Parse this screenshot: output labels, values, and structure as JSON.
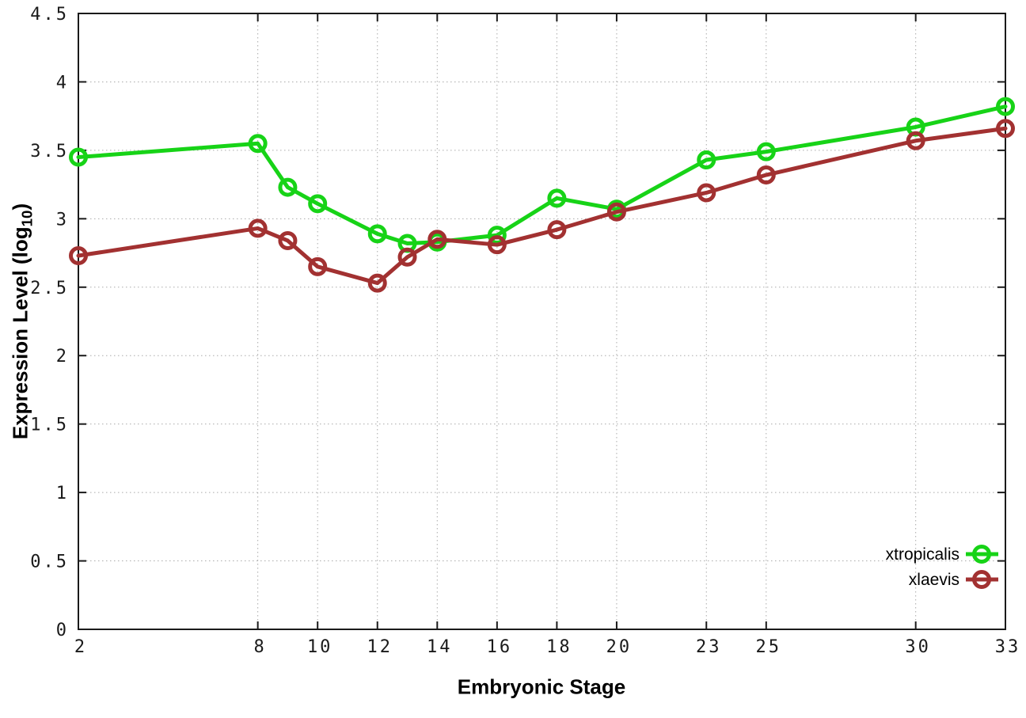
{
  "chart_data": {
    "type": "line",
    "title": "",
    "xlabel": "Embryonic Stage",
    "ylabel_prefix": "Expression Level (log",
    "ylabel_sub": "10",
    "ylabel_suffix": ")",
    "xlim": [
      2,
      33
    ],
    "ylim": [
      0,
      4.5
    ],
    "grid": true,
    "legend_position": "bottom-right",
    "xticks": [
      2,
      8,
      10,
      12,
      14,
      16,
      18,
      20,
      23,
      25,
      30,
      33
    ],
    "xtick_labels": [
      "2",
      "8",
      "10",
      "12",
      "14",
      "16",
      "18",
      "20",
      "23",
      "25",
      "30",
      "33"
    ],
    "yticks": [
      0,
      0.5,
      1,
      1.5,
      2,
      2.5,
      3,
      3.5,
      4,
      4.5
    ],
    "ytick_labels": [
      "0",
      "0.5",
      "1",
      "1.5",
      "2",
      "2.5",
      "3",
      "3.5",
      "4",
      "4.5"
    ],
    "x": [
      2,
      8,
      9,
      10,
      12,
      13,
      14,
      16,
      18,
      20,
      23,
      25,
      30,
      33
    ],
    "series": [
      {
        "name": "xtropicalis",
        "color": "#17d317",
        "marker": "open-circle",
        "values": [
          3.45,
          3.55,
          3.23,
          3.11,
          2.89,
          2.82,
          2.83,
          2.88,
          3.15,
          3.07,
          3.43,
          3.49,
          3.67,
          3.82
        ]
      },
      {
        "name": "xlaevis",
        "color": "#a23131",
        "marker": "open-circle",
        "values": [
          2.73,
          2.93,
          2.84,
          2.65,
          2.53,
          2.72,
          2.85,
          2.81,
          2.92,
          3.05,
          3.19,
          3.32,
          3.57,
          3.66
        ]
      }
    ],
    "style": {
      "grid_color": "#aaaaaa",
      "border_color": "#1a1a1a",
      "tick_label_color": "#1a1a1a",
      "background": "#ffffff"
    }
  }
}
